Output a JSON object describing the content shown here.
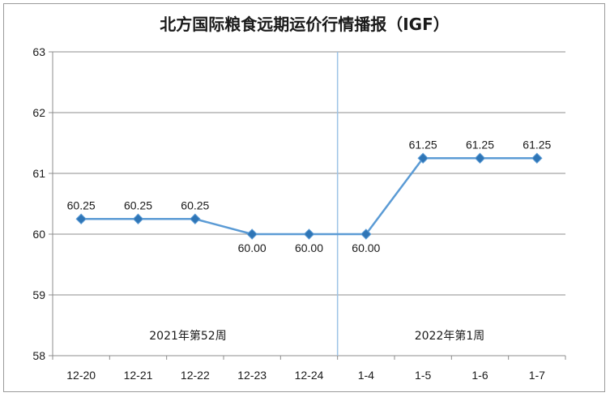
{
  "chart_data": {
    "type": "line",
    "title": "北方国际粮食远期运价行情播报（IGF）",
    "categories": [
      "12-20",
      "12-21",
      "12-22",
      "12-23",
      "12-24",
      "1-4",
      "1-5",
      "1-6",
      "1-7"
    ],
    "series": [
      {
        "values": [
          60.25,
          60.25,
          60.25,
          60.0,
          60.0,
          60.0,
          61.25,
          61.25,
          61.25
        ],
        "data_labels": [
          "60.25",
          "60.25",
          "60.25",
          "60.00",
          "60.00",
          "60.00",
          "61.25",
          "61.25",
          "61.25"
        ]
      }
    ],
    "ylim": [
      58,
      63
    ],
    "yticks": [
      "58",
      "59",
      "60",
      "61",
      "62",
      "63"
    ],
    "grid": true,
    "week_annotations": [
      "2021年第52周",
      "2022年第1周"
    ],
    "colors": {
      "line": "#5b9bd5",
      "marker": "#2e75b6",
      "divider": "#9dc3e6",
      "grid": "#8c8c8c"
    }
  }
}
